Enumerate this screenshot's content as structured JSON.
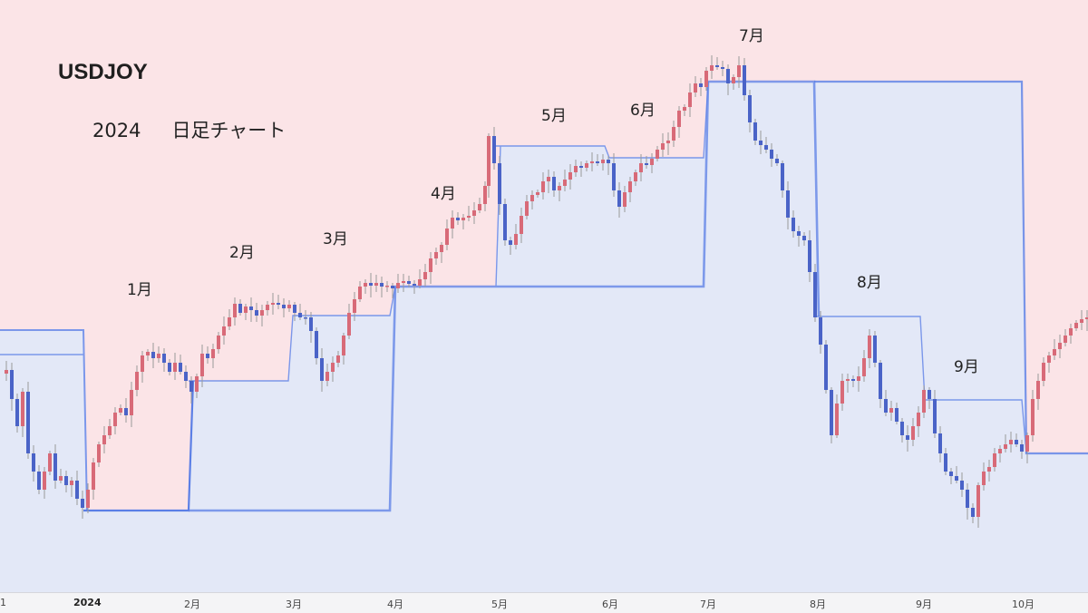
{
  "header": {
    "title": "USDJOY",
    "year": "2024",
    "subtitle": "日足チャート"
  },
  "colors": {
    "background": "#fbe4e7",
    "range_fill": "#e3e8f7",
    "range_line": "#7b97ea",
    "range_line_bold": "#5b7fe6",
    "candle_up": "#d86a78",
    "candle_down": "#4a63c7",
    "wick": "#9a9a9a"
  },
  "chart_data": {
    "type": "candlestick",
    "x_axis": {
      "ticks": [
        "1",
        "2024",
        "2月",
        "3月",
        "4月",
        "5月",
        "6月",
        "7月",
        "8月",
        "9月",
        "10月"
      ]
    },
    "month_annotations": [
      "1月",
      "2月",
      "3月",
      "4月",
      "5月",
      "6月",
      "7月",
      "8月",
      "9月"
    ],
    "monthly_ranges": [
      {
        "month": "1月",
        "high": 148.8,
        "low": 140.8
      },
      {
        "month": "2月",
        "high": 150.9,
        "low": 145.9
      },
      {
        "month": "3月",
        "high": 151.9,
        "low": 146.5
      },
      {
        "month": "4月",
        "high": 160.2,
        "low": 151.0
      },
      {
        "month": "5月",
        "high": 157.7,
        "low": 151.8
      },
      {
        "month": "6月",
        "high": 161.3,
        "low": 154.5
      },
      {
        "month": "7月",
        "high": 161.9,
        "low": 141.7
      },
      {
        "month": "8月",
        "high": 149.4,
        "low": 141.7
      },
      {
        "month": "9月",
        "high": 146.5,
        "low": 139.6
      }
    ]
  }
}
